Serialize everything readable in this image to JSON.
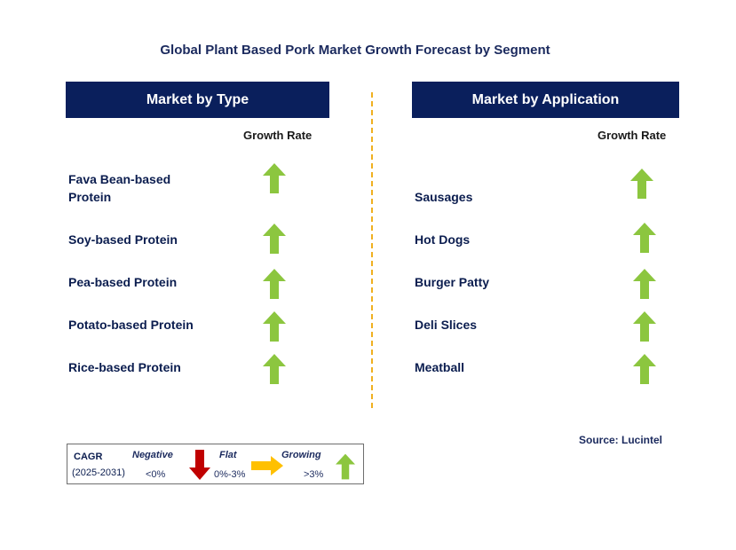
{
  "title": "Global Plant Based Pork Market Growth Forecast by Segment",
  "left_panel": {
    "header": "Market by Type",
    "column_label": "Growth Rate",
    "segments": [
      {
        "label_lines": [
          "Fava Bean-based",
          "Protein"
        ],
        "trend": "growing"
      },
      {
        "label_lines": [
          "Soy-based Protein"
        ],
        "trend": "growing"
      },
      {
        "label_lines": [
          "Pea-based Protein"
        ],
        "trend": "growing"
      },
      {
        "label_lines": [
          "Potato-based Protein"
        ],
        "trend": "growing"
      },
      {
        "label_lines": [
          "Rice-based Protein"
        ],
        "trend": "growing"
      }
    ]
  },
  "right_panel": {
    "header": "Market by Application",
    "column_label": "Growth Rate",
    "segments": [
      {
        "label": "Sausages",
        "trend": "growing"
      },
      {
        "label": "Hot Dogs",
        "trend": "growing"
      },
      {
        "label": "Burger Patty",
        "trend": "growing"
      },
      {
        "label": "Deli Slices",
        "trend": "growing"
      },
      {
        "label": "Meatball",
        "trend": "growing"
      }
    ]
  },
  "legend": {
    "cagr_label": "CAGR",
    "years": "(2025-2031)",
    "negative": {
      "label": "Negative",
      "value": "<0%",
      "icon": "red-down-arrow-icon"
    },
    "flat": {
      "label": "Flat",
      "value": "0%-3%",
      "icon": "orange-right-arrow-icon"
    },
    "growing": {
      "label": "Growing",
      "value": ">3%",
      "icon": "green-up-arrow-icon"
    }
  },
  "source": "Source: Lucintel",
  "colors": {
    "header_bg": "#0a1f5c",
    "title_text": "#1b2a5e",
    "green": "#8cc63f",
    "red": "#c00000",
    "orange": "#ffc000",
    "divider": "#f0b020"
  }
}
